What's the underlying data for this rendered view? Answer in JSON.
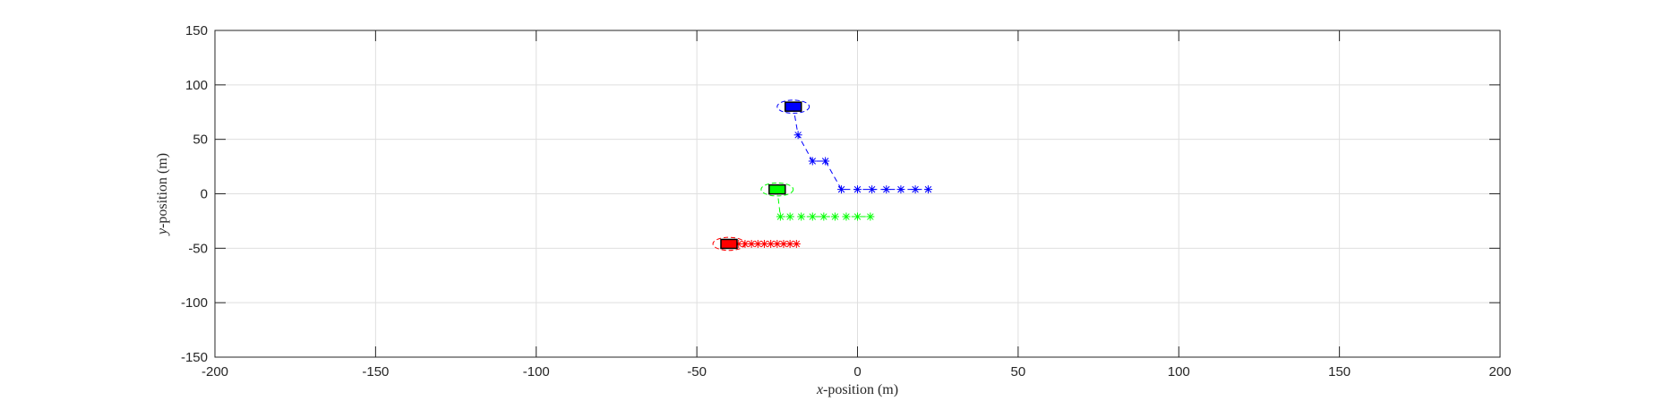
{
  "chart_data": {
    "type": "scatter",
    "xlabel": {
      "var": "x",
      "rest": "-position (m)"
    },
    "ylabel": {
      "var": "y",
      "rest": "-position (m)"
    },
    "xlim": [
      -200,
      200
    ],
    "ylim": [
      -150,
      150
    ],
    "xticks": [
      -200,
      -150,
      -100,
      -50,
      0,
      50,
      100,
      150,
      200
    ],
    "yticks": [
      -150,
      -100,
      -50,
      0,
      50,
      100,
      150
    ],
    "xtick_labels": [
      "-200",
      "-150",
      "-100",
      "-50",
      "0",
      "50",
      "100",
      "150",
      "200"
    ],
    "ytick_labels": [
      "-150",
      "-100",
      "-50",
      "0",
      "50",
      "100",
      "150"
    ],
    "grid": true,
    "series": [
      {
        "color": "#0000ff",
        "vehicle": {
          "x": -20,
          "y": 80,
          "ellipse_rx": 5,
          "ellipse_ry": 6
        },
        "path": [
          {
            "x": -20,
            "y": 80
          },
          {
            "x": -18.5,
            "y": 54
          },
          {
            "x": -14,
            "y": 30
          },
          {
            "x": -10,
            "y": 30
          },
          {
            "x": -5,
            "y": 4
          },
          {
            "x": 0,
            "y": 4
          },
          {
            "x": 4.5,
            "y": 4
          },
          {
            "x": 9,
            "y": 4
          },
          {
            "x": 13.5,
            "y": 4
          },
          {
            "x": 18,
            "y": 4
          },
          {
            "x": 22,
            "y": 4
          }
        ],
        "markers": [
          {
            "x": -18.5,
            "y": 54
          },
          {
            "x": -14,
            "y": 30
          },
          {
            "x": -10,
            "y": 30
          },
          {
            "x": -5,
            "y": 4
          },
          {
            "x": 0,
            "y": 4
          },
          {
            "x": 4.5,
            "y": 4
          },
          {
            "x": 9,
            "y": 4
          },
          {
            "x": 13.5,
            "y": 4
          },
          {
            "x": 18,
            "y": 4
          },
          {
            "x": 22,
            "y": 4
          }
        ]
      },
      {
        "color": "#00ff00",
        "vehicle": {
          "x": -25,
          "y": 4,
          "ellipse_rx": 5,
          "ellipse_ry": 6
        },
        "path": [
          {
            "x": -25,
            "y": 4
          },
          {
            "x": -24,
            "y": -21
          },
          {
            "x": 4,
            "y": -21
          }
        ],
        "markers": [
          {
            "x": -24,
            "y": -21
          },
          {
            "x": -21,
            "y": -21
          },
          {
            "x": -17.5,
            "y": -21
          },
          {
            "x": -14,
            "y": -21
          },
          {
            "x": -10.5,
            "y": -21
          },
          {
            "x": -7,
            "y": -21
          },
          {
            "x": -3.5,
            "y": -21
          },
          {
            "x": 0,
            "y": -21
          },
          {
            "x": 4,
            "y": -21
          }
        ]
      },
      {
        "color": "#ff0000",
        "vehicle": {
          "x": -40,
          "y": -46,
          "ellipse_rx": 5,
          "ellipse_ry": 6
        },
        "path": [
          {
            "x": -40,
            "y": -46
          },
          {
            "x": -19,
            "y": -46
          }
        ],
        "markers": [
          {
            "x": -37,
            "y": -46
          },
          {
            "x": -35,
            "y": -46
          },
          {
            "x": -33,
            "y": -46
          },
          {
            "x": -31,
            "y": -46
          },
          {
            "x": -29,
            "y": -46
          },
          {
            "x": -27,
            "y": -46
          },
          {
            "x": -25,
            "y": -46
          },
          {
            "x": -23,
            "y": -46
          },
          {
            "x": -21,
            "y": -46
          },
          {
            "x": -19,
            "y": -46
          }
        ]
      }
    ]
  }
}
